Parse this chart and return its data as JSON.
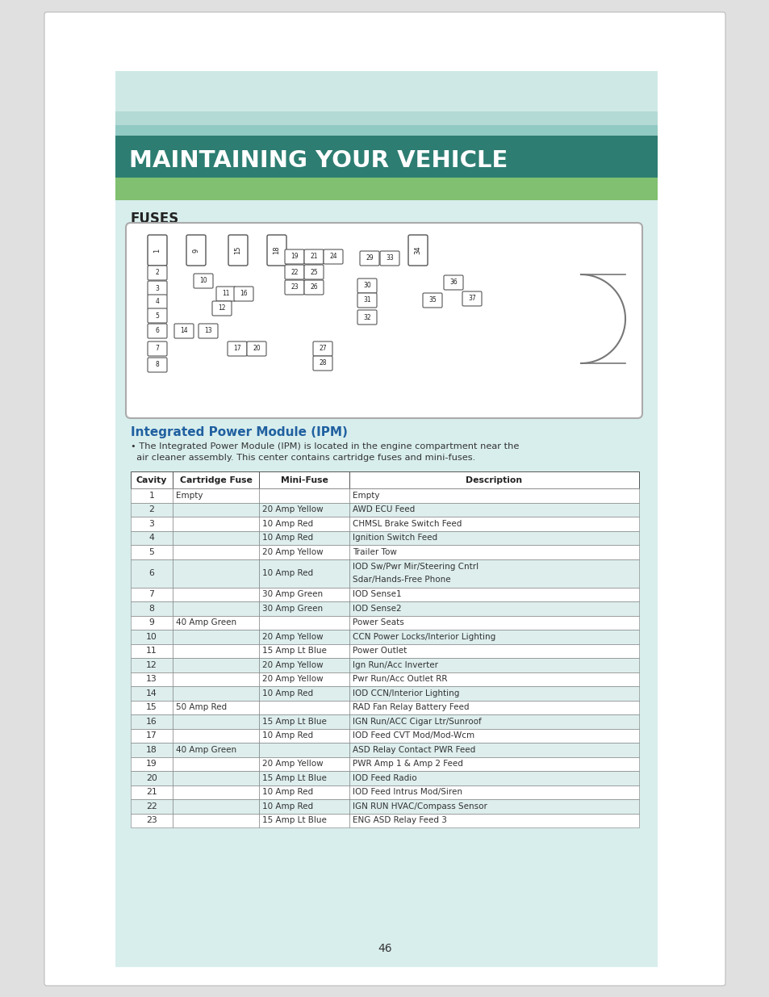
{
  "page_bg": "#e8e8e8",
  "content_bg": "#ddeee9",
  "header_text": "MAINTAINING YOUR VEHICLE",
  "section_title": "FUSES",
  "ipm_title": "Integrated Power Module (IPM)",
  "ipm_desc1": "• The Integrated Power Module (IPM) is located in the engine compartment near the",
  "ipm_desc2": "  air cleaner assembly. This center contains cartridge fuses and mini-fuses.",
  "table_headers": [
    "Cavity",
    "Cartridge Fuse",
    "Mini-Fuse",
    "Description"
  ],
  "table_data": [
    [
      "1",
      "Empty",
      "",
      "Empty"
    ],
    [
      "2",
      "",
      "20 Amp Yellow",
      "AWD ECU Feed"
    ],
    [
      "3",
      "",
      "10 Amp Red",
      "CHMSL Brake Switch Feed"
    ],
    [
      "4",
      "",
      "10 Amp Red",
      "Ignition Switch Feed"
    ],
    [
      "5",
      "",
      "20 Amp Yellow",
      "Trailer Tow"
    ],
    [
      "6",
      "",
      "10 Amp Red",
      "IOD Sw/Pwr Mir/Steering Cntrl|Sdar/Hands-Free Phone"
    ],
    [
      "7",
      "",
      "30 Amp Green",
      "IOD Sense1"
    ],
    [
      "8",
      "",
      "30 Amp Green",
      "IOD Sense2"
    ],
    [
      "9",
      "40 Amp Green",
      "",
      "Power Seats"
    ],
    [
      "10",
      "",
      "20 Amp Yellow",
      "CCN Power Locks/Interior Lighting"
    ],
    [
      "11",
      "",
      "15 Amp Lt Blue",
      "Power Outlet"
    ],
    [
      "12",
      "",
      "20 Amp Yellow",
      "Ign Run/Acc Inverter"
    ],
    [
      "13",
      "",
      "20 Amp Yellow",
      "Pwr Run/Acc Outlet RR"
    ],
    [
      "14",
      "",
      "10 Amp Red",
      "IOD CCN/Interior Lighting"
    ],
    [
      "15",
      "50 Amp Red",
      "",
      "RAD Fan Relay Battery Feed"
    ],
    [
      "16",
      "",
      "15 Amp Lt Blue",
      "IGN Run/ACC Cigar Ltr/Sunroof"
    ],
    [
      "17",
      "",
      "10 Amp Red",
      "IOD Feed CVT Mod/Mod-Wcm"
    ],
    [
      "18",
      "40 Amp Green",
      "",
      "ASD Relay Contact PWR Feed"
    ],
    [
      "19",
      "",
      "20 Amp Yellow",
      "PWR Amp 1 & Amp 2 Feed"
    ],
    [
      "20",
      "",
      "15 Amp Lt Blue",
      "IOD Feed Radio"
    ],
    [
      "21",
      "",
      "10 Amp Red",
      "IOD Feed Intrus Mod/Siren"
    ],
    [
      "22",
      "",
      "10 Amp Red",
      "IGN RUN HVAC/Compass Sensor"
    ],
    [
      "23",
      "",
      "15 Amp Lt Blue",
      "ENG ASD Relay Feed 3"
    ]
  ],
  "page_number": "46"
}
